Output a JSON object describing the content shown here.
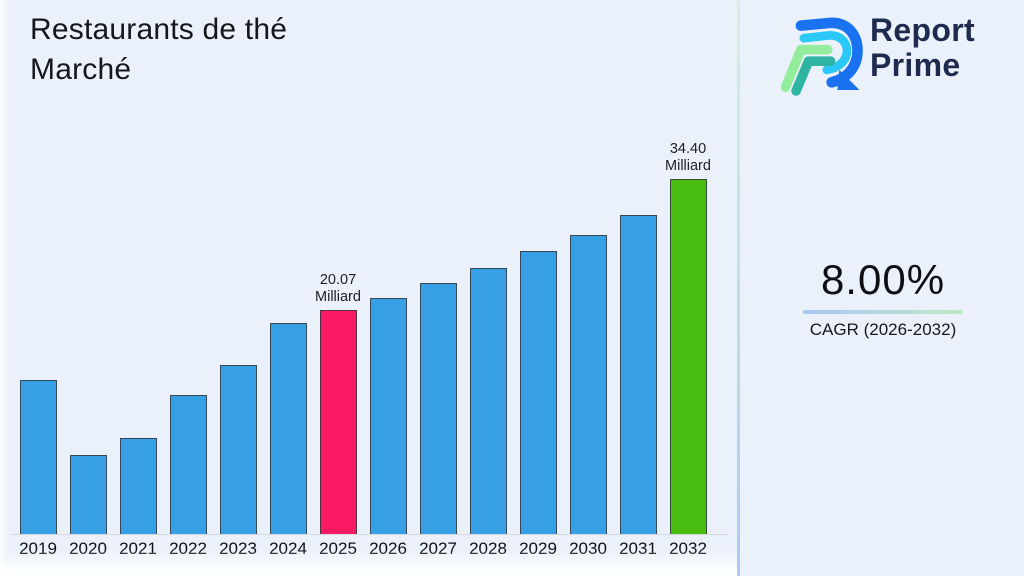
{
  "page": {
    "background": "#EBF1FA"
  },
  "header": {
    "title_lines": [
      "Restaurants de thé",
      "Marché"
    ]
  },
  "brand": {
    "name_lines": [
      "Report",
      "Prime"
    ],
    "text_color": "#1F2A4F",
    "logo_colors": {
      "blue": "#1B72F0",
      "cyan": "#29C8F6",
      "light_green": "#94ED9C",
      "teal": "#2FB3A3"
    }
  },
  "stat": {
    "value": "8.00%",
    "label": "CAGR (2026-2032)",
    "underline_from": "#A9C6F5",
    "underline_to": "#BDEAC6"
  },
  "chart_data": {
    "type": "bar",
    "title": "Restaurants de thé Marché",
    "categories": [
      "2019",
      "2020",
      "2021",
      "2022",
      "2023",
      "2024",
      "2025",
      "2026",
      "2027",
      "2028",
      "2029",
      "2030",
      "2031",
      "2032"
    ],
    "values": [
      12.5,
      4.3,
      6.2,
      10.8,
      14.1,
      18.7,
      20.07,
      21.4,
      23.0,
      24.7,
      26.5,
      28.2,
      30.4,
      34.4
    ],
    "unit": "Milliard",
    "ylim": [
      -4.4,
      36.2
    ],
    "grid": false,
    "legend": false,
    "bar_default_color": "#379FE5",
    "bar_edge_color": "#34383F",
    "axis_line_color": "#D5D8DD",
    "highlights": [
      {
        "category": "2025",
        "color": "#FA1A64",
        "label_lines": [
          "20.07",
          "Milliard"
        ]
      },
      {
        "category": "2032",
        "color": "#48BD10",
        "label_lines": [
          "34.40",
          "Milliard"
        ]
      }
    ]
  }
}
